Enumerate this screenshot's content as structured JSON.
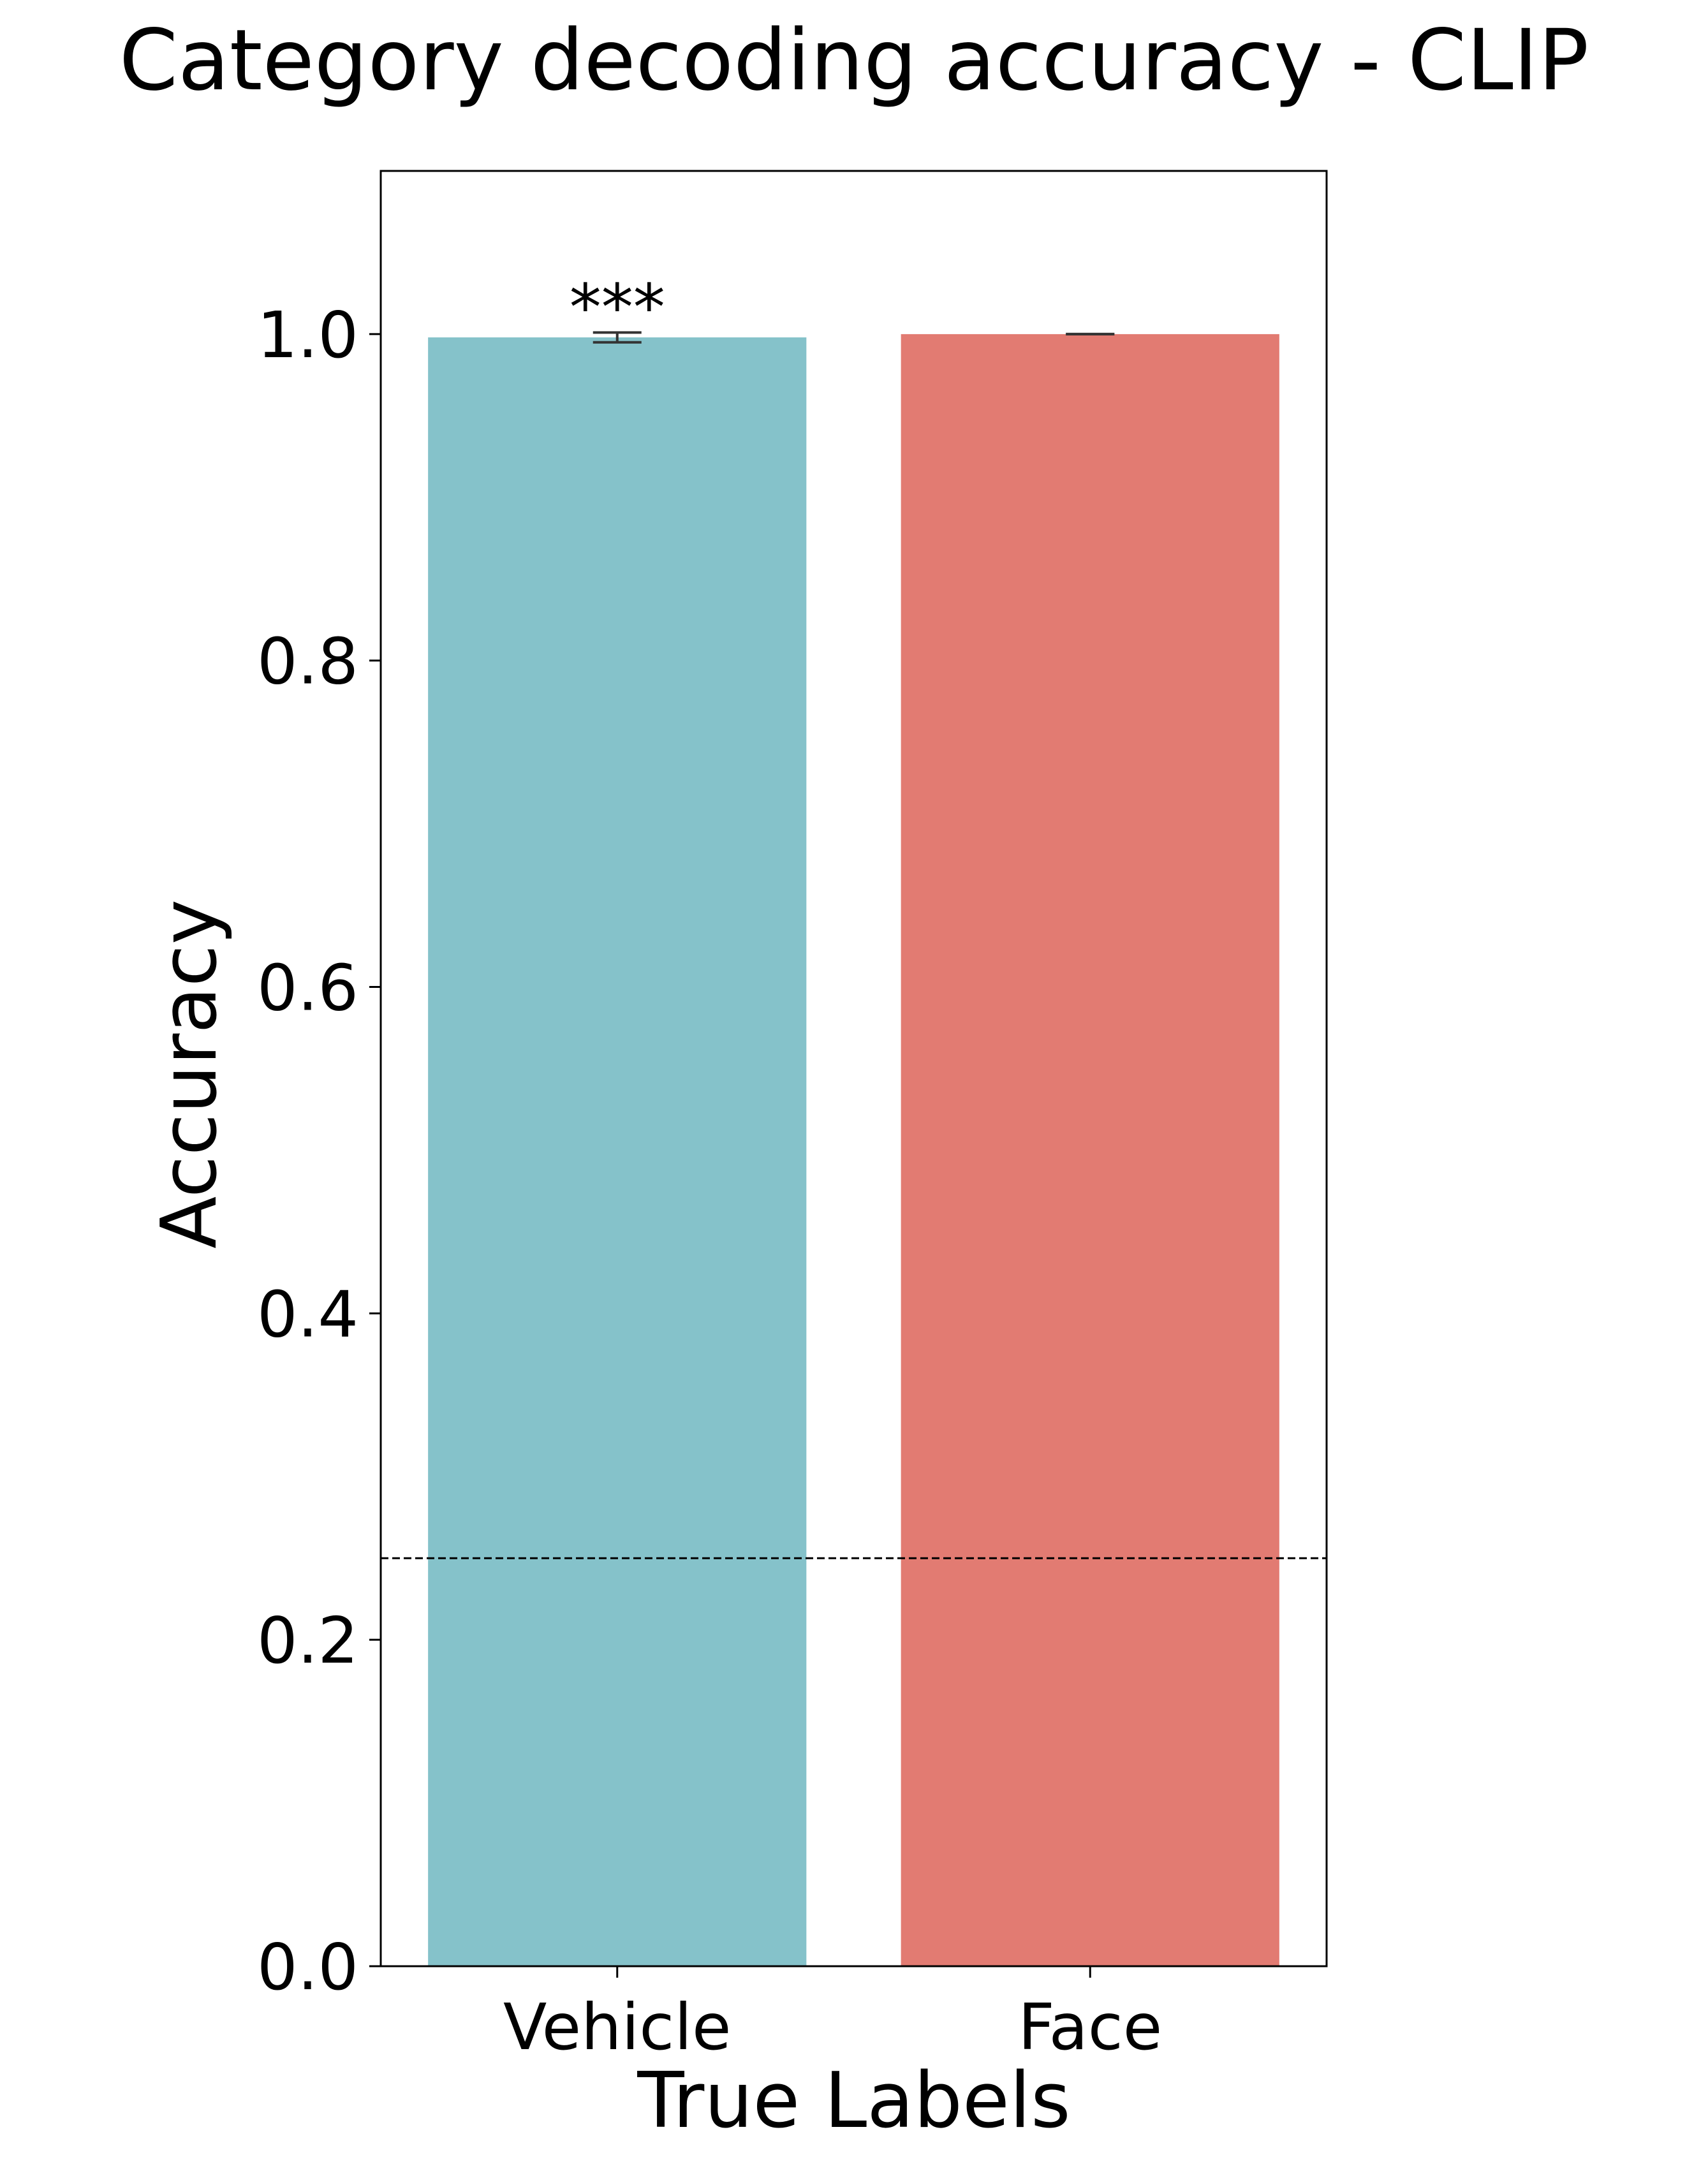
{
  "chart_data": {
    "type": "bar",
    "title": "Category decoding accuracy - CLIP",
    "xlabel": "True Labels",
    "ylabel": "Accuracy",
    "categories": [
      "Vehicle",
      "Face"
    ],
    "values": [
      0.998,
      1.0
    ],
    "errors": [
      0.003,
      0.0
    ],
    "colors": [
      "#85c2ca",
      "#e27b72"
    ],
    "annotations": [
      {
        "category": "Vehicle",
        "text": "***"
      }
    ],
    "reference_line": {
      "y": 0.25,
      "style": "dashed",
      "color": "#000000"
    },
    "ylim": [
      0,
      1.1
    ],
    "yticks": [
      {
        "value": 0.0,
        "label": "0.0"
      },
      {
        "value": 0.2,
        "label": "0.2"
      },
      {
        "value": 0.4,
        "label": "0.4"
      },
      {
        "value": 0.6,
        "label": "0.6"
      },
      {
        "value": 0.8,
        "label": "0.8"
      },
      {
        "value": 1.0,
        "label": "1.0"
      }
    ],
    "grid": false,
    "legend": "none"
  }
}
